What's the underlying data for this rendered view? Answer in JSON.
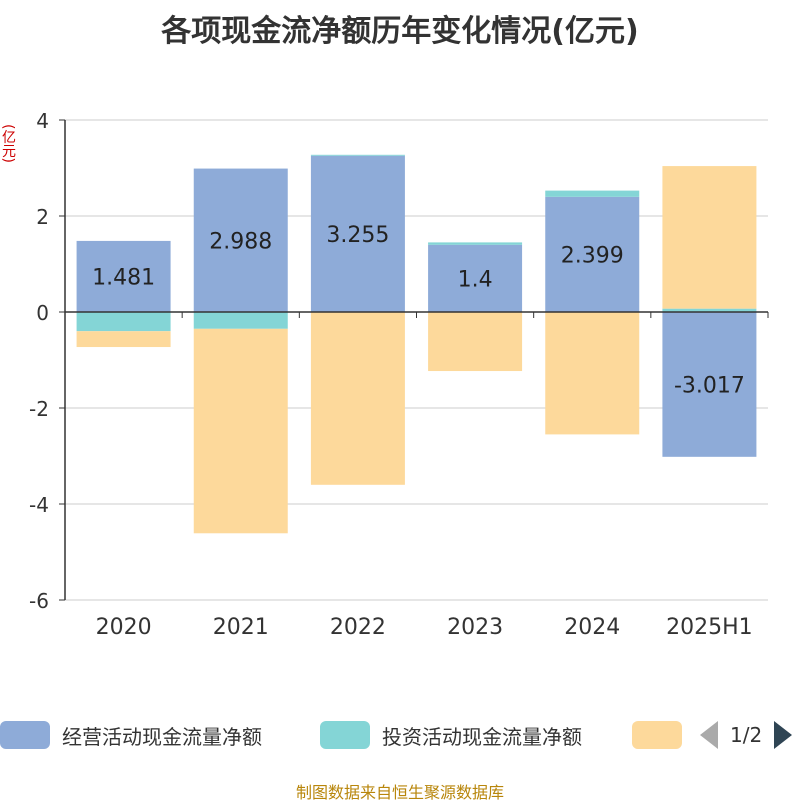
{
  "title": "各项现金流净额历年变化情况(亿元)",
  "unit_label": "(亿元)",
  "source": "制图数据来自恒生聚源数据库",
  "legend": {
    "page": "1/2",
    "items": [
      {
        "label": "经营活动现金流量净额",
        "color": "#8eabd8"
      },
      {
        "label": "投资活动现金流量净额",
        "color": "#84d5d6"
      },
      {
        "label": "",
        "color": "#fdd99b"
      }
    ]
  },
  "chart_data": {
    "type": "bar",
    "stacked": true,
    "categories": [
      "2020",
      "2021",
      "2022",
      "2023",
      "2024",
      "2025H1"
    ],
    "ylim": [
      -6,
      4
    ],
    "yticks": [
      4,
      2,
      0,
      -2,
      -4,
      -6
    ],
    "grid": true,
    "legend_position": "bottom",
    "series": [
      {
        "name": "经营活动现金流量净额",
        "color": "#8eabd8",
        "values": [
          1.481,
          2.988,
          3.255,
          1.4,
          2.399,
          -3.017
        ],
        "labels": [
          "1.481",
          "2.988",
          "3.255",
          "1.4",
          "2.399",
          "-3.017"
        ]
      },
      {
        "name": "投资活动现金流量净额",
        "color": "#84d5d6",
        "values": [
          -0.4,
          -0.35,
          0.02,
          0.05,
          0.13,
          0.07
        ]
      },
      {
        "color": "#fdd99b",
        "values": [
          -0.33,
          -4.26,
          -3.6,
          -1.23,
          -2.55,
          2.97
        ]
      }
    ]
  }
}
